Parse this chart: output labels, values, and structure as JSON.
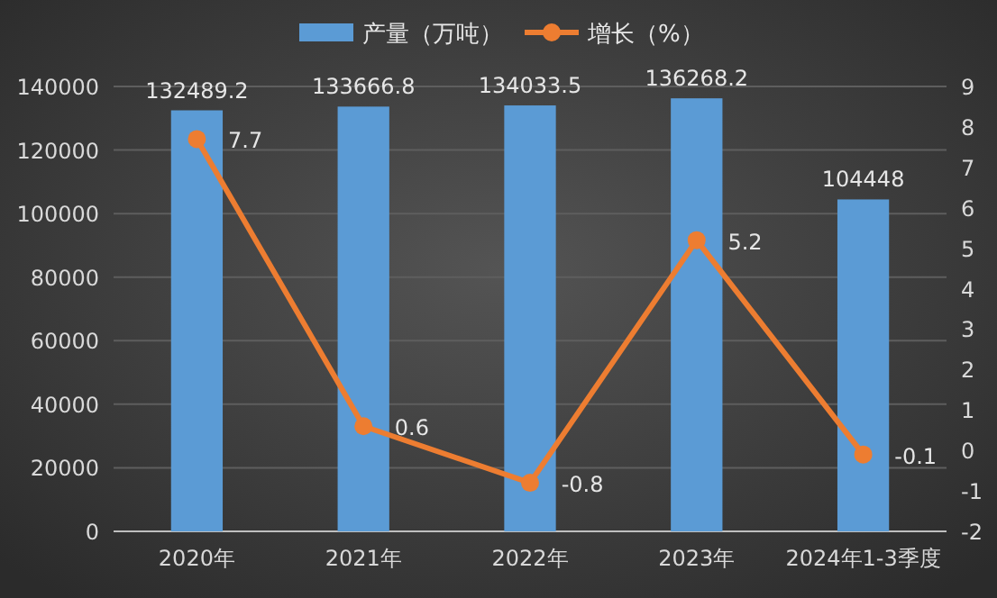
{
  "chart_data": {
    "type": "bar",
    "categories": [
      "2020年",
      "2021年",
      "2022年",
      "2023年",
      "2024年1-3季度"
    ],
    "series": [
      {
        "name": "产量（万吨）",
        "color": "#5b9bd5",
        "values": [
          132489.2,
          133666.8,
          134033.5,
          136268.2,
          104448
        ]
      },
      {
        "name": "增长（%）",
        "type": "line",
        "axis": "y2",
        "color": "#ed7d31",
        "values": [
          7.7,
          0.6,
          -0.8,
          5.2,
          -0.1
        ],
        "marker": "circle",
        "line_style": "solid"
      }
    ],
    "data_labels": true,
    "ylim": [
      0,
      140000
    ],
    "yticks": [
      0,
      20000,
      40000,
      60000,
      80000,
      100000,
      120000,
      140000
    ],
    "y2lim": [
      -2,
      9
    ],
    "y2ticks": [
      -2,
      -1,
      0,
      1,
      2,
      3,
      4,
      5,
      6,
      7,
      8,
      9
    ],
    "grid": "y",
    "legend": "top"
  }
}
